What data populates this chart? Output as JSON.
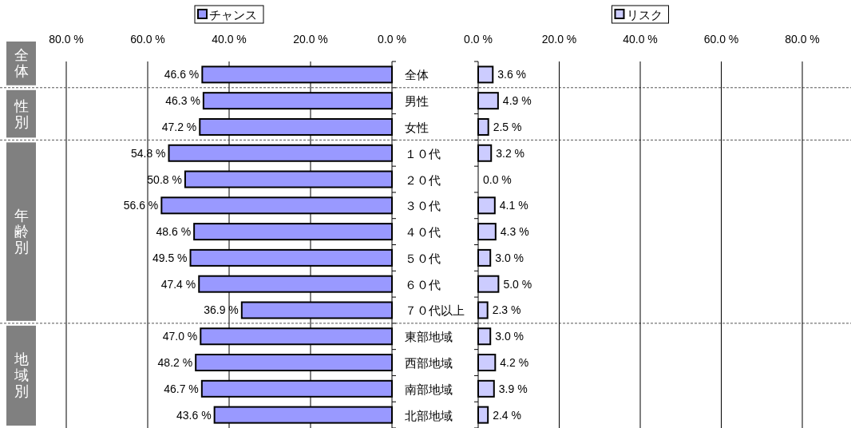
{
  "chart_data": [
    {
      "type": "bar",
      "orientation": "horizontal",
      "categories": [
        "全体",
        "男性",
        "女性",
        "１０代",
        "２０代",
        "３０代",
        "４０代",
        "５０代",
        "６０代",
        "７０代以上",
        "東部地域",
        "西部地域",
        "南部地域",
        "北部地域"
      ],
      "series": [
        {
          "name": "チャンス",
          "color": "#9999ff",
          "values": [
            46.6,
            46.3,
            47.2,
            54.8,
            50.8,
            56.6,
            48.6,
            49.5,
            47.4,
            36.9,
            47.0,
            48.2,
            46.7,
            43.6
          ],
          "value_labels": [
            "46.6 %",
            "46.3 %",
            "47.2 %",
            "54.8 %",
            "50.8 %",
            "56.6 %",
            "48.6 %",
            "49.5 %",
            "47.4 %",
            "36.9 %",
            "47.0 %",
            "48.2 %",
            "46.7 %",
            "43.6 %"
          ]
        }
      ],
      "xlim": [
        80,
        0
      ],
      "xticks": [
        {
          "value": 80,
          "label": "80.0 %"
        },
        {
          "value": 60,
          "label": "60.0 %"
        },
        {
          "value": 40,
          "label": "40.0 %"
        },
        {
          "value": 20,
          "label": "20.0 %"
        },
        {
          "value": 0,
          "label": "0.0 %"
        }
      ],
      "grid": "x",
      "legend": "top",
      "annotations": [
        "全体",
        "性別",
        "年齢別",
        "地域別"
      ]
    },
    {
      "type": "bar",
      "orientation": "horizontal",
      "series": [
        {
          "name": "リスク",
          "color": "#ccccff",
          "values": [
            3.6,
            4.9,
            2.5,
            3.2,
            0.0,
            4.1,
            4.3,
            3.0,
            5.0,
            2.3,
            3.0,
            4.2,
            3.9,
            2.4
          ],
          "value_labels": [
            "3.6 %",
            "4.9 %",
            "2.5 %",
            "3.2 %",
            "0.0 %",
            "4.1 %",
            "4.3 %",
            "3.0 %",
            "5.0 %",
            "2.3 %",
            "3.0 %",
            "4.2 %",
            "3.9 %",
            "2.4 %"
          ]
        }
      ],
      "xlim": [
        0,
        80
      ],
      "xticks": [
        {
          "value": 0,
          "label": "0.0 %"
        },
        {
          "value": 20,
          "label": "20.0 %"
        },
        {
          "value": 40,
          "label": "40.0 %"
        },
        {
          "value": 60,
          "label": "60.0 %"
        },
        {
          "value": 80,
          "label": "80.0 %"
        }
      ],
      "grid": "x",
      "legend": "top",
      "tick_labels": "x"
    }
  ]
}
